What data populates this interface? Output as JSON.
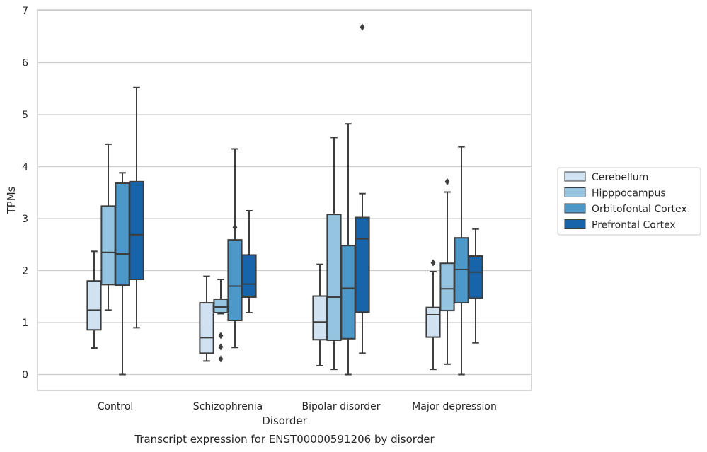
{
  "chart_data": {
    "type": "box",
    "title": "",
    "caption": "Transcript expression for ENST00000591206 by disorder",
    "xlabel": "Disorder",
    "ylabel": "TPMs",
    "ylim": [
      -0.3,
      7.05
    ],
    "yticks": [
      0,
      1,
      2,
      3,
      4,
      5,
      6,
      7
    ],
    "grid": true,
    "legend_position": "right",
    "categories": [
      "Control",
      "Schizophrenia",
      "Bipolar disorder",
      "Major depression"
    ],
    "series": [
      {
        "name": "Cerebellum",
        "color": "#d0e1f2",
        "boxes": [
          {
            "whislo": 0.51,
            "q1": 0.86,
            "med": 1.24,
            "q3": 1.8,
            "whishi": 2.37,
            "fliers": []
          },
          {
            "whislo": 0.26,
            "q1": 0.41,
            "med": 0.71,
            "q3": 1.38,
            "whishi": 1.89,
            "fliers": []
          },
          {
            "whislo": 0.17,
            "q1": 0.67,
            "med": 1.01,
            "q3": 1.51,
            "whishi": 2.12,
            "fliers": []
          },
          {
            "whislo": 0.1,
            "q1": 0.72,
            "med": 1.15,
            "q3": 1.29,
            "whishi": 1.98,
            "fliers": [
              2.15
            ]
          }
        ]
      },
      {
        "name": "Hipppocampus",
        "color": "#94c4df",
        "boxes": [
          {
            "whislo": 1.24,
            "q1": 1.73,
            "med": 2.35,
            "q3": 3.24,
            "whishi": 4.43,
            "fliers": []
          },
          {
            "whislo": 1.17,
            "q1": 1.19,
            "med": 1.3,
            "q3": 1.45,
            "whishi": 1.83,
            "fliers": [
              0.75,
              0.53,
              0.3
            ]
          },
          {
            "whislo": 0.1,
            "q1": 0.66,
            "med": 1.49,
            "q3": 3.08,
            "whishi": 4.56,
            "fliers": []
          },
          {
            "whislo": 0.2,
            "q1": 1.23,
            "med": 1.65,
            "q3": 2.14,
            "whishi": 3.51,
            "fliers": [
              3.71
            ]
          }
        ]
      },
      {
        "name": "Orbitofontal Cortex",
        "color": "#4b98c9",
        "boxes": [
          {
            "whislo": 0.0,
            "q1": 1.72,
            "med": 2.32,
            "q3": 3.68,
            "whishi": 3.88,
            "fliers": []
          },
          {
            "whislo": 0.52,
            "q1": 1.04,
            "med": 1.7,
            "q3": 2.59,
            "whishi": 4.34,
            "fliers": [
              2.83
            ]
          },
          {
            "whislo": 0.0,
            "q1": 0.69,
            "med": 1.66,
            "q3": 2.48,
            "whishi": 4.82,
            "fliers": []
          },
          {
            "whislo": 0.0,
            "q1": 1.38,
            "med": 2.02,
            "q3": 2.63,
            "whishi": 4.38,
            "fliers": []
          }
        ]
      },
      {
        "name": "Prefrontal Cortex",
        "color": "#1764ab",
        "boxes": [
          {
            "whislo": 0.9,
            "q1": 1.83,
            "med": 2.69,
            "q3": 3.71,
            "whishi": 5.52,
            "fliers": []
          },
          {
            "whislo": 1.19,
            "q1": 1.49,
            "med": 1.74,
            "q3": 2.3,
            "whishi": 3.15,
            "fliers": []
          },
          {
            "whislo": 0.41,
            "q1": 1.2,
            "med": 2.61,
            "q3": 3.02,
            "whishi": 3.48,
            "fliers": [
              6.68
            ]
          },
          {
            "whislo": 0.61,
            "q1": 1.47,
            "med": 1.97,
            "q3": 2.28,
            "whishi": 2.8,
            "fliers": []
          }
        ]
      }
    ]
  }
}
